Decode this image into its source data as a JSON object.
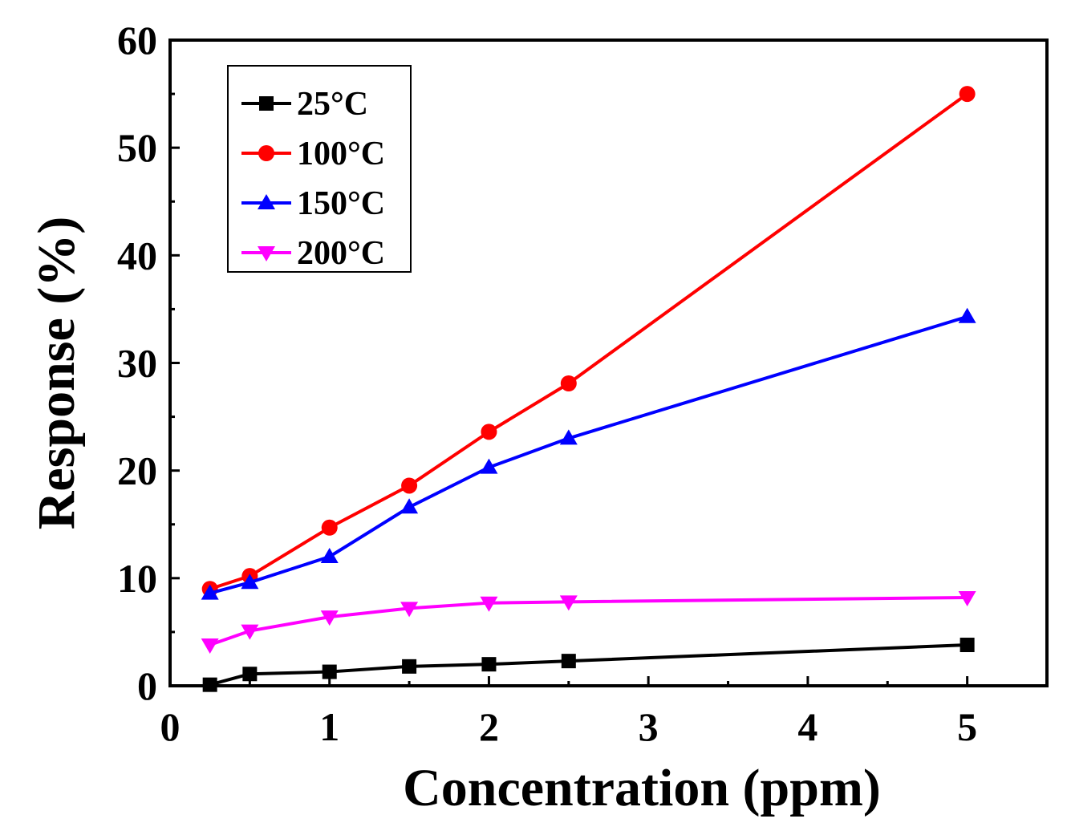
{
  "chart_data": {
    "type": "line",
    "title": "",
    "xlabel": "Concentration (ppm)",
    "ylabel": "Response (%)",
    "xlim": [
      0,
      5.5
    ],
    "ylim": [
      0,
      60
    ],
    "xticks": [
      0,
      1,
      2,
      3,
      4,
      5
    ],
    "xtick_labels": [
      "0",
      "1",
      "2",
      "3",
      "4",
      "5"
    ],
    "yticks": [
      0,
      10,
      20,
      30,
      40,
      50,
      60
    ],
    "ytick_labels": [
      "0",
      "10",
      "20",
      "30",
      "40",
      "50",
      "60"
    ],
    "grid": false,
    "legend_position": "top-left",
    "x": [
      0.25,
      0.5,
      1,
      1.5,
      2,
      2.5,
      5
    ],
    "series": [
      {
        "name": "25°C",
        "color": "#000000",
        "marker": "square",
        "values": [
          0.1,
          1.1,
          1.3,
          1.8,
          2.0,
          2.3,
          3.8
        ]
      },
      {
        "name": "100°C",
        "color": "#ff0000",
        "marker": "circle",
        "values": [
          9.0,
          10.2,
          14.7,
          18.6,
          23.6,
          28.1,
          55.0
        ]
      },
      {
        "name": "150°C",
        "color": "#0000ff",
        "marker": "triangle-up",
        "values": [
          8.6,
          9.6,
          12.0,
          16.6,
          20.3,
          23.0,
          34.3
        ]
      },
      {
        "name": "200°C",
        "color": "#ff00ff",
        "marker": "triangle-down",
        "values": [
          3.8,
          5.1,
          6.4,
          7.2,
          7.7,
          7.8,
          8.2
        ]
      }
    ]
  }
}
